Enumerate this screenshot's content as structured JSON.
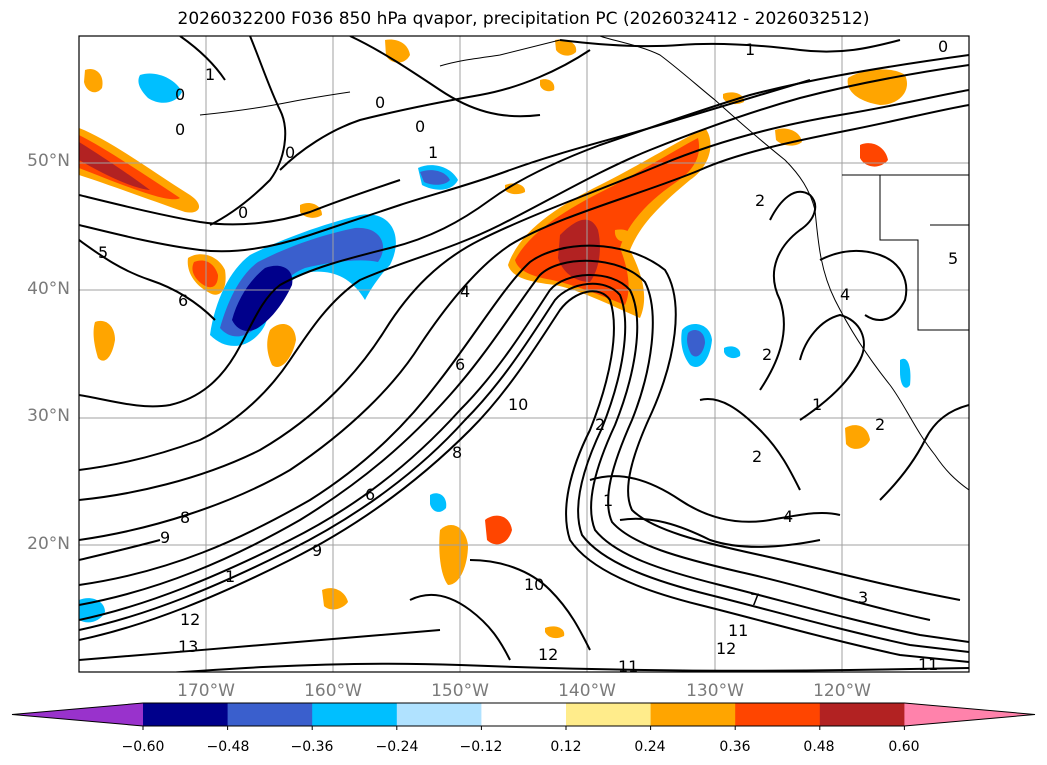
{
  "title": "2026032200 F036 850 hPa qvapor, precipitation PC (2026032412 - 2026032512)",
  "map": {
    "lat_ticks": [
      "50°N",
      "40°N",
      "30°N",
      "20°N"
    ],
    "lon_ticks": [
      "170°W",
      "160°W",
      "150°W",
      "140°W",
      "130°W",
      "120°W"
    ],
    "contour_labels": [
      "1",
      "1",
      "1",
      "0",
      "0",
      "0",
      "0",
      "0",
      "0",
      "0",
      "5",
      "6",
      "6",
      "6",
      "8",
      "8",
      "9",
      "9",
      "10",
      "10",
      "12",
      "12",
      "13",
      "11",
      "11",
      "11",
      "12",
      "2",
      "2",
      "2",
      "2",
      "4",
      "4",
      "3",
      "1",
      "7",
      "5",
      "4",
      "2",
      "1",
      "1"
    ],
    "extent_lon": [
      -180,
      -110
    ],
    "extent_lat": [
      10,
      60
    ],
    "colorbar": {
      "ticks": [
        "−0.60",
        "−0.48",
        "−0.36",
        "−0.24",
        "−0.12",
        "0.12",
        "0.24",
        "0.36",
        "0.48",
        "0.60"
      ],
      "colors": [
        "#9932cc",
        "#00008b",
        "#3a5fcd",
        "#00bfff",
        "#b0e2ff",
        "#ffffff",
        "#ffec8b",
        "#ffa500",
        "#ff4500",
        "#b22222",
        "#ff82ab"
      ]
    }
  }
}
